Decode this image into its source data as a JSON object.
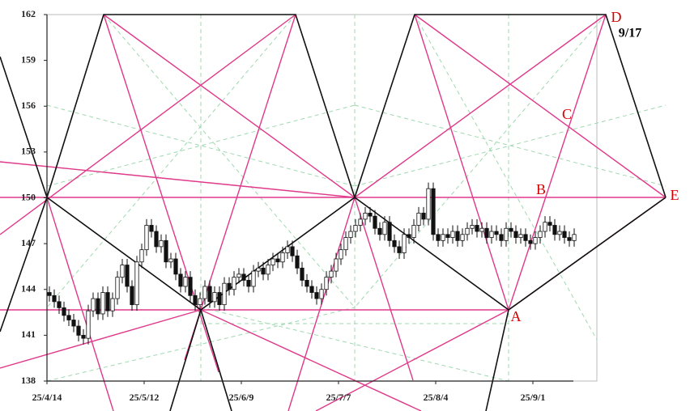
{
  "chart_data": {
    "type": "candlestick",
    "categories": [
      "25/4/14",
      null,
      null,
      null,
      null,
      null,
      null,
      null,
      null,
      null,
      null,
      null,
      null,
      null,
      null,
      null,
      null,
      null,
      null,
      null,
      "25/5/12",
      null,
      null,
      null,
      null,
      null,
      null,
      null,
      null,
      null,
      null,
      null,
      null,
      null,
      null,
      null,
      null,
      null,
      null,
      null,
      "25/6/9",
      null,
      null,
      null,
      null,
      null,
      null,
      null,
      null,
      null,
      null,
      null,
      null,
      null,
      null,
      null,
      null,
      null,
      null,
      null,
      "25/7/7",
      null,
      null,
      null,
      null,
      null,
      null,
      null,
      null,
      null,
      null,
      null,
      null,
      null,
      null,
      null,
      null,
      null,
      null,
      null,
      "25/8/4",
      null,
      null,
      null,
      null,
      null,
      null,
      null,
      null,
      null,
      null,
      null,
      null,
      null,
      null,
      null,
      null,
      null,
      null,
      null,
      "25/9/1",
      null,
      null,
      null,
      null,
      null,
      null,
      null,
      null
    ],
    "open": [
      143.8,
      143.6,
      143.2,
      142.8,
      142.3,
      142.0,
      141.6,
      141.0,
      140.8,
      142.6,
      143.4,
      142.4,
      143.8,
      142.6,
      143.4,
      144.8,
      145.6,
      144.2,
      143.0,
      145.8,
      146.6,
      148.2,
      147.8,
      146.8,
      147.2,
      145.8,
      146.0,
      145.0,
      144.2,
      144.8,
      143.6,
      143.0,
      143.4,
      144.2,
      143.2,
      143.8,
      143.0,
      144.4,
      144.0,
      144.8,
      145.0,
      144.6,
      144.2,
      145.2,
      145.4,
      145.0,
      145.6,
      146.0,
      145.8,
      146.4,
      146.8,
      146.2,
      145.4,
      144.6,
      144.2,
      143.8,
      143.4,
      144.0,
      144.8,
      145.2,
      146.0,
      146.6,
      147.4,
      147.8,
      148.2,
      148.6,
      149.0,
      148.8,
      148.0,
      147.6,
      148.4,
      147.2,
      146.8,
      146.4,
      147.6,
      147.4,
      148.2,
      149.0,
      148.6,
      150.6,
      147.6,
      147.2,
      147.6,
      147.4,
      147.8,
      147.2,
      147.6,
      148.0,
      148.2,
      147.8,
      148.0,
      147.4,
      147.8,
      147.6,
      147.2,
      148.0,
      147.8,
      147.4,
      147.6,
      147.2,
      147.0,
      147.4,
      147.8,
      148.4,
      148.2,
      147.6,
      147.8,
      147.4,
      147.2
    ],
    "high": [
      144.2,
      144.0,
      143.6,
      143.2,
      142.7,
      142.4,
      142.0,
      141.4,
      143.0,
      143.8,
      143.8,
      144.2,
      144.2,
      143.8,
      145.2,
      146.0,
      146.0,
      144.6,
      146.2,
      147.0,
      148.6,
      148.6,
      148.2,
      147.6,
      147.6,
      146.4,
      146.4,
      145.4,
      145.2,
      145.2,
      144.0,
      143.8,
      144.6,
      144.6,
      144.2,
      144.2,
      144.8,
      144.8,
      145.2,
      145.4,
      145.4,
      145.0,
      145.6,
      145.8,
      145.8,
      146.0,
      146.4,
      146.4,
      146.8,
      147.2,
      147.2,
      146.6,
      145.8,
      145.0,
      144.6,
      144.2,
      144.4,
      145.2,
      145.6,
      146.4,
      147.0,
      147.8,
      148.2,
      148.6,
      149.0,
      149.4,
      149.4,
      149.2,
      148.4,
      148.8,
      148.8,
      147.6,
      147.2,
      148.0,
      148.0,
      148.6,
      149.4,
      149.4,
      151.0,
      151.0,
      148.0,
      148.0,
      148.0,
      148.2,
      148.2,
      148.0,
      148.4,
      148.6,
      148.6,
      148.4,
      148.4,
      148.2,
      148.2,
      148.0,
      148.4,
      148.4,
      148.2,
      148.0,
      148.0,
      147.6,
      147.8,
      148.2,
      148.8,
      148.8,
      148.6,
      148.2,
      148.2,
      147.8,
      148.0
    ],
    "low": [
      143.2,
      142.8,
      142.4,
      141.9,
      141.6,
      141.2,
      140.6,
      140.4,
      140.4,
      142.2,
      142.0,
      142.0,
      142.2,
      142.2,
      143.0,
      144.4,
      143.8,
      142.6,
      142.6,
      145.4,
      146.2,
      147.4,
      146.4,
      146.4,
      145.4,
      145.4,
      144.6,
      143.8,
      143.8,
      143.2,
      142.6,
      142.6,
      143.0,
      142.8,
      142.8,
      142.6,
      142.6,
      143.6,
      143.6,
      144.4,
      144.2,
      143.8,
      143.8,
      144.8,
      144.6,
      144.6,
      145.2,
      145.4,
      145.4,
      146.0,
      145.8,
      145.0,
      144.2,
      143.8,
      143.4,
      143.0,
      143.0,
      143.6,
      144.4,
      144.8,
      145.6,
      146.2,
      147.0,
      147.4,
      147.8,
      148.2,
      148.4,
      147.6,
      147.2,
      147.2,
      146.8,
      146.4,
      146.0,
      146.0,
      147.0,
      147.0,
      147.8,
      148.2,
      148.2,
      147.2,
      146.8,
      146.8,
      147.0,
      147.0,
      146.8,
      146.8,
      147.2,
      147.6,
      147.4,
      147.4,
      147.0,
      147.0,
      147.2,
      146.8,
      146.8,
      147.4,
      147.0,
      147.0,
      146.8,
      146.6,
      146.6,
      147.0,
      147.4,
      147.8,
      147.2,
      147.2,
      147.0,
      146.8,
      146.8
    ],
    "close": [
      143.6,
      143.2,
      142.8,
      142.3,
      142.0,
      141.6,
      141.0,
      140.8,
      142.6,
      143.4,
      142.4,
      143.8,
      142.6,
      143.4,
      144.8,
      145.6,
      144.2,
      143.0,
      145.8,
      146.6,
      148.2,
      147.8,
      146.8,
      147.2,
      145.8,
      146.0,
      145.0,
      144.2,
      144.8,
      143.6,
      143.0,
      143.4,
      144.2,
      143.2,
      143.8,
      143.0,
      144.4,
      144.0,
      144.8,
      145.0,
      144.6,
      144.2,
      145.2,
      145.4,
      145.0,
      145.6,
      146.0,
      145.8,
      146.4,
      146.8,
      146.2,
      145.4,
      144.6,
      144.2,
      143.8,
      143.4,
      144.0,
      144.8,
      145.2,
      146.0,
      146.6,
      147.4,
      147.8,
      148.2,
      148.6,
      149.0,
      148.8,
      148.0,
      147.6,
      148.4,
      147.2,
      146.8,
      146.4,
      147.6,
      147.4,
      148.2,
      149.0,
      148.6,
      150.6,
      147.6,
      147.2,
      147.6,
      147.4,
      147.8,
      147.2,
      147.6,
      148.0,
      148.2,
      147.8,
      148.0,
      147.4,
      147.8,
      147.6,
      147.2,
      148.0,
      147.8,
      147.4,
      147.6,
      147.2,
      147.0,
      147.4,
      147.8,
      148.4,
      148.2,
      147.6,
      147.8,
      147.4,
      147.2,
      147.6
    ],
    "up_color": "#ffffff",
    "down_color": "#111111",
    "ylim": [
      138,
      162
    ],
    "yticks": [
      138,
      141,
      144,
      147,
      150,
      153,
      156,
      159,
      162
    ],
    "grid": false,
    "annotations": [
      "A",
      "B",
      "C",
      "D",
      "E",
      "9/17"
    ]
  }
}
